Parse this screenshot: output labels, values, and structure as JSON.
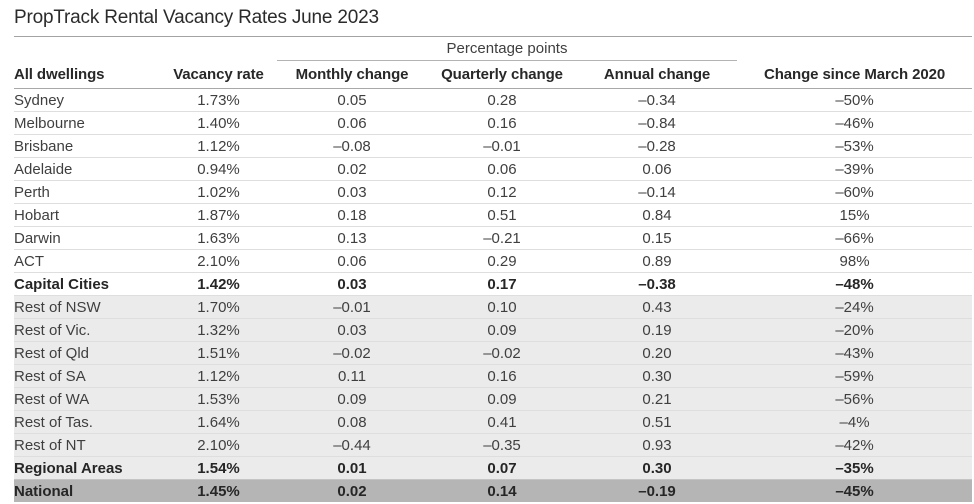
{
  "title": {
    "main": "PropTrack Rental Vacancy Rates",
    "suffix": " June 2023"
  },
  "colors": {
    "text_dark": "#2b2b2b",
    "text_body": "#3f3f3f",
    "row_light_bg": "#ebebeb",
    "row_national_bg": "#b5b5b5",
    "rule_strong": "#a8a8a8",
    "rule_light": "#dedede"
  },
  "chart_data": {
    "type": "table",
    "title": "PropTrack Rental Vacancy Rates June 2023",
    "group_header": {
      "label": "Percentage points",
      "spans": [
        "Monthly change",
        "Quarterly change",
        "Annual change"
      ]
    },
    "columns": [
      "All dwellings",
      "Vacancy rate",
      "Monthly change",
      "Quarterly change",
      "Annual change",
      "Change since March 2020"
    ],
    "rows": [
      {
        "label": "Sydney",
        "values": [
          "1.73%",
          "0.05",
          "0.28",
          "–0.34",
          "–50%"
        ],
        "bold": false,
        "bg": "white"
      },
      {
        "label": "Melbourne",
        "values": [
          "1.40%",
          "0.06",
          "0.16",
          "–0.84",
          "–46%"
        ],
        "bold": false,
        "bg": "white"
      },
      {
        "label": "Brisbane",
        "values": [
          "1.12%",
          "–0.08",
          "–0.01",
          "–0.28",
          "–53%"
        ],
        "bold": false,
        "bg": "white"
      },
      {
        "label": "Adelaide",
        "values": [
          "0.94%",
          "0.02",
          "0.06",
          "0.06",
          "–39%"
        ],
        "bold": false,
        "bg": "white"
      },
      {
        "label": "Perth",
        "values": [
          "1.02%",
          "0.03",
          "0.12",
          "–0.14",
          "–60%"
        ],
        "bold": false,
        "bg": "white"
      },
      {
        "label": "Hobart",
        "values": [
          "1.87%",
          "0.18",
          "0.51",
          "0.84",
          "15%"
        ],
        "bold": false,
        "bg": "white"
      },
      {
        "label": "Darwin",
        "values": [
          "1.63%",
          "0.13",
          "–0.21",
          "0.15",
          "–66%"
        ],
        "bold": false,
        "bg": "white"
      },
      {
        "label": "ACT",
        "values": [
          "2.10%",
          "0.06",
          "0.29",
          "0.89",
          "98%"
        ],
        "bold": false,
        "bg": "white"
      },
      {
        "label": "Capital Cities",
        "values": [
          "1.42%",
          "0.03",
          "0.17",
          "–0.38",
          "–48%"
        ],
        "bold": true,
        "bg": "white"
      },
      {
        "label": "Rest of NSW",
        "values": [
          "1.70%",
          "–0.01",
          "0.10",
          "0.43",
          "–24%"
        ],
        "bold": false,
        "bg": "light"
      },
      {
        "label": "Rest of Vic.",
        "values": [
          "1.32%",
          "0.03",
          "0.09",
          "0.19",
          "–20%"
        ],
        "bold": false,
        "bg": "light"
      },
      {
        "label": "Rest of Qld",
        "values": [
          "1.51%",
          "–0.02",
          "–0.02",
          "0.20",
          "–43%"
        ],
        "bold": false,
        "bg": "light"
      },
      {
        "label": "Rest of SA",
        "values": [
          "1.12%",
          "0.11",
          "0.16",
          "0.30",
          "–59%"
        ],
        "bold": false,
        "bg": "light"
      },
      {
        "label": "Rest of WA",
        "values": [
          "1.53%",
          "0.09",
          "0.09",
          "0.21",
          "–56%"
        ],
        "bold": false,
        "bg": "light"
      },
      {
        "label": "Rest of Tas.",
        "values": [
          "1.64%",
          "0.08",
          "0.41",
          "0.51",
          "–4%"
        ],
        "bold": false,
        "bg": "light"
      },
      {
        "label": "Rest of NT",
        "values": [
          "2.10%",
          "–0.44",
          "–0.35",
          "0.93",
          "–42%"
        ],
        "bold": false,
        "bg": "light"
      },
      {
        "label": "Regional Areas",
        "values": [
          "1.54%",
          "0.01",
          "0.07",
          "0.30",
          "–35%"
        ],
        "bold": true,
        "bg": "light"
      },
      {
        "label": "National",
        "values": [
          "1.45%",
          "0.02",
          "0.14",
          "–0.19",
          "–45%"
        ],
        "bold": true,
        "bg": "dark"
      }
    ]
  }
}
